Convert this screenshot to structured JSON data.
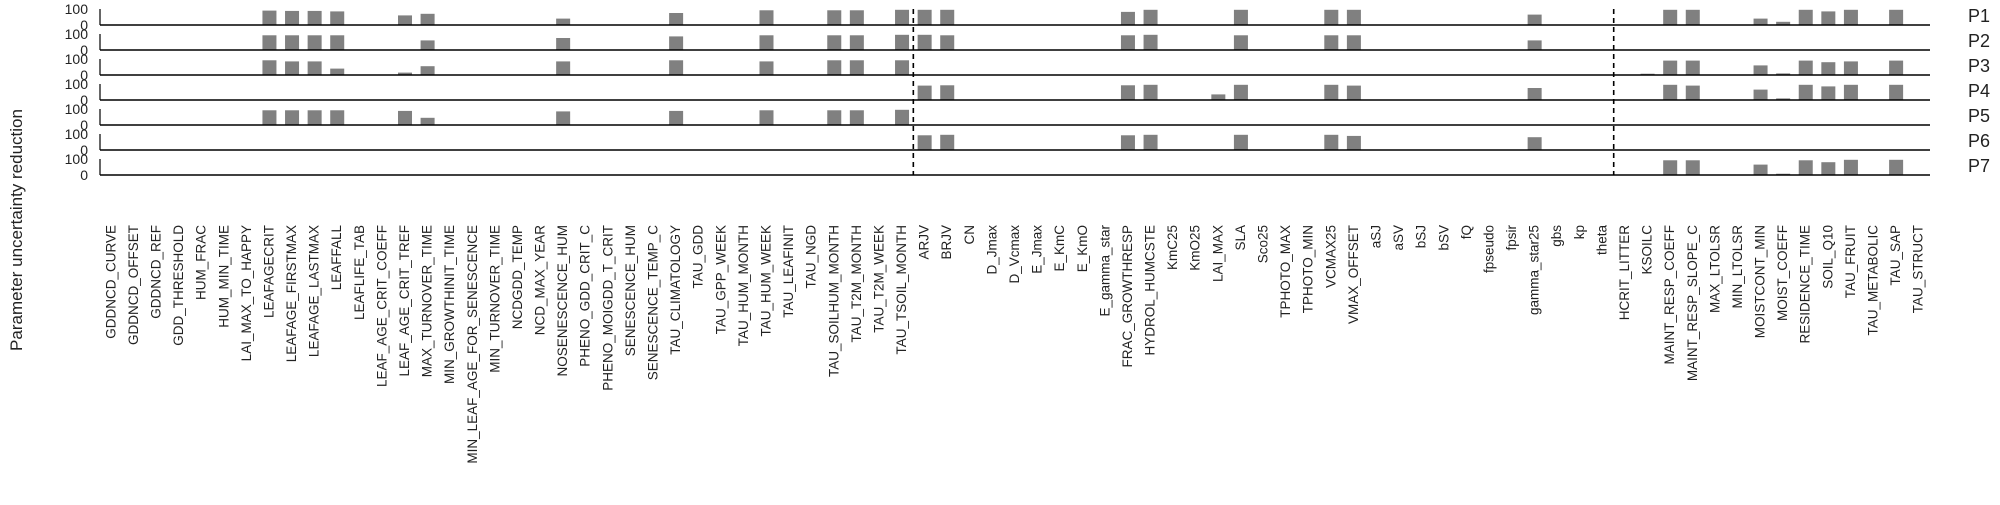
{
  "chart_data": {
    "type": "bar",
    "ylabel": "Parameter uncertainty reduction",
    "ylim": [
      0,
      100
    ],
    "yticks": [
      "0",
      "100"
    ],
    "bar_color": "#808080",
    "separator_after": [
      "TAU_TSOIL_MONTH",
      "theta"
    ],
    "categories": [
      "GDDNCD_CURVE",
      "GDDNCD_OFFSET",
      "GDDNCD_REF",
      "GDD_THRESHOLD",
      "HUM_FRAC",
      "HUM_MIN_TIME",
      "LAI_MAX_TO_HAPPY",
      "LEAFAGECRIT",
      "LEAFAGE_FIRSTMAX",
      "LEAFAGE_LASTMAX",
      "LEAFFALL",
      "LEAFLIFE_TAB",
      "LEAF_AGE_CRIT_COEFF",
      "LEAF_AGE_CRIT_TREF",
      "MAX_TURNOVER_TIME",
      "MIN_GROWTHINIT_TIME",
      "MIN_LEAF_AGE_FOR_SENESCENCE",
      "MIN_TURNOVER_TIME",
      "NCDGDD_TEMP",
      "NCD_MAX_YEAR",
      "NOSENESCENCE_HUM",
      "PHENO_GDD_CRIT_C",
      "PHENO_MOIGDD_T_CRIT",
      "SENESCENCE_HUM",
      "SENESCENCE_TEMP_C",
      "TAU_CLIMATOLOGY",
      "TAU_GDD",
      "TAU_GPP_WEEK",
      "TAU_HUM_MONTH",
      "TAU_HUM_WEEK",
      "TAU_LEAFINIT",
      "TAU_NGD",
      "TAU_SOILHUM_MONTH",
      "TAU_T2M_MONTH",
      "TAU_T2M_WEEK",
      "TAU_TSOIL_MONTH",
      "ARJV",
      "BRJV",
      "CN",
      "D_Jmax",
      "D_Vcmax",
      "E_Jmax",
      "E_KmC",
      "E_KmO",
      "E_gamma_star",
      "FRAC_GROWTHRESP",
      "HYDROL_HUMCSTE",
      "KmC25",
      "KmO25",
      "LAI_MAX",
      "SLA",
      "Sco25",
      "TPHOTO_MAX",
      "TPHOTO_MIN",
      "VCMAX25",
      "VMAX_OFFSET",
      "aSJ",
      "aSV",
      "bSJ",
      "bSV",
      "fQ",
      "fpseudo",
      "fpsir",
      "gamma_star25",
      "gbs",
      "kp",
      "theta",
      "HCRIT_LITTER",
      "KSOILC",
      "MAINT_RESP_COEFF",
      "MAINT_RESP_SLOPE_C",
      "MAX_LTOLSR",
      "MIN_LTOLSR",
      "MOISTCONT_MIN",
      "MOIST_COEFF",
      "RESIDENCE_TIME",
      "SOIL_Q10",
      "TAU_FRUIT",
      "TAU_METABOLIC",
      "TAU_SAP",
      "TAU_STRUCT"
    ],
    "series": [
      {
        "name": "P1",
        "values": {
          "LEAFAGECRIT": 90,
          "LEAFAGE_FIRSTMAX": 88,
          "LEAFAGE_LASTMAX": 88,
          "LEAFFALL": 85,
          "LEAF_AGE_CRIT_TREF": 60,
          "MAX_TURNOVER_TIME": 70,
          "NOSENESCENCE_HUM": 40,
          "TAU_CLIMATOLOGY": 75,
          "TAU_HUM_WEEK": 92,
          "TAU_SOILHUM_MONTH": 92,
          "TAU_T2M_MONTH": 92,
          "TAU_TSOIL_MONTH": 95,
          "ARJV": 95,
          "BRJV": 95,
          "FRAC_GROWTHRESP": 82,
          "HYDROL_HUMCSTE": 95,
          "SLA": 95,
          "VCMAX25": 95,
          "VMAX_OFFSET": 95,
          "gamma_star25": 65,
          "MAINT_RESP_COEFF": 95,
          "MAINT_RESP_SLOPE_C": 95,
          "MOISTCONT_MIN": 40,
          "MOIST_COEFF": 20,
          "RESIDENCE_TIME": 95,
          "SOIL_Q10": 85,
          "TAU_FRUIT": 95,
          "TAU_SAP": 95
        }
      },
      {
        "name": "P2",
        "values": {
          "LEAFAGECRIT": 92,
          "LEAFAGE_FIRSTMAX": 92,
          "LEAFAGE_LASTMAX": 92,
          "LEAFFALL": 92,
          "MAX_TURNOVER_TIME": 60,
          "NOSENESCENCE_HUM": 75,
          "TAU_CLIMATOLOGY": 85,
          "TAU_HUM_WEEK": 92,
          "TAU_SOILHUM_MONTH": 92,
          "TAU_T2M_MONTH": 92,
          "TAU_TSOIL_MONTH": 95,
          "ARJV": 95,
          "BRJV": 92,
          "FRAC_GROWTHRESP": 92,
          "HYDROL_HUMCSTE": 95,
          "SLA": 92,
          "VCMAX25": 92,
          "VMAX_OFFSET": 92,
          "gamma_star25": 60
        }
      },
      {
        "name": "P3",
        "values": {
          "LEAFAGECRIT": 92,
          "LEAFAGE_FIRSTMAX": 85,
          "LEAFAGE_LASTMAX": 85,
          "LEAFFALL": 40,
          "LEAF_AGE_CRIT_TREF": 15,
          "MAX_TURNOVER_TIME": 55,
          "NOSENESCENCE_HUM": 85,
          "TAU_CLIMATOLOGY": 92,
          "TAU_HUM_WEEK": 85,
          "TAU_SOILHUM_MONTH": 92,
          "TAU_T2M_MONTH": 92,
          "TAU_TSOIL_MONTH": 92,
          "KSOILC": 8,
          "MAINT_RESP_COEFF": 90,
          "MAINT_RESP_SLOPE_C": 90,
          "MOISTCONT_MIN": 60,
          "MOIST_COEFF": 10,
          "RESIDENCE_TIME": 90,
          "SOIL_Q10": 80,
          "TAU_FRUIT": 85,
          "TAU_SAP": 90
        }
      },
      {
        "name": "P4",
        "values": {
          "ARJV": 90,
          "BRJV": 92,
          "FRAC_GROWTHRESP": 92,
          "HYDROL_HUMCSTE": 95,
          "LAI_MAX": 35,
          "SLA": 95,
          "VCMAX25": 95,
          "VMAX_OFFSET": 90,
          "gamma_star25": 75,
          "MAINT_RESP_COEFF": 95,
          "MAINT_RESP_SLOPE_C": 90,
          "MOISTCONT_MIN": 65,
          "MOIST_COEFF": 10,
          "RESIDENCE_TIME": 95,
          "SOIL_Q10": 85,
          "TAU_FRUIT": 95,
          "TAU_SAP": 95
        }
      },
      {
        "name": "P5",
        "values": {
          "LEAFAGECRIT": 92,
          "LEAFAGE_FIRSTMAX": 92,
          "LEAFAGE_LASTMAX": 92,
          "LEAFFALL": 92,
          "LEAF_AGE_CRIT_TREF": 88,
          "MAX_TURNOVER_TIME": 45,
          "NOSENESCENCE_HUM": 85,
          "TAU_CLIMATOLOGY": 88,
          "TAU_HUM_WEEK": 92,
          "TAU_SOILHUM_MONTH": 92,
          "TAU_T2M_MONTH": 92,
          "TAU_TSOIL_MONTH": 95
        }
      },
      {
        "name": "P6",
        "values": {
          "ARJV": 92,
          "BRJV": 95,
          "FRAC_GROWTHRESP": 92,
          "HYDROL_HUMCSTE": 95,
          "SLA": 95,
          "VCMAX25": 95,
          "VMAX_OFFSET": 88,
          "gamma_star25": 80
        }
      },
      {
        "name": "P7",
        "values": {
          "MAINT_RESP_COEFF": 92,
          "MAINT_RESP_SLOPE_C": 92,
          "MOISTCONT_MIN": 65,
          "MOIST_COEFF": 8,
          "RESIDENCE_TIME": 92,
          "SOIL_Q10": 80,
          "TAU_FRUIT": 95,
          "TAU_SAP": 95
        }
      }
    ]
  }
}
